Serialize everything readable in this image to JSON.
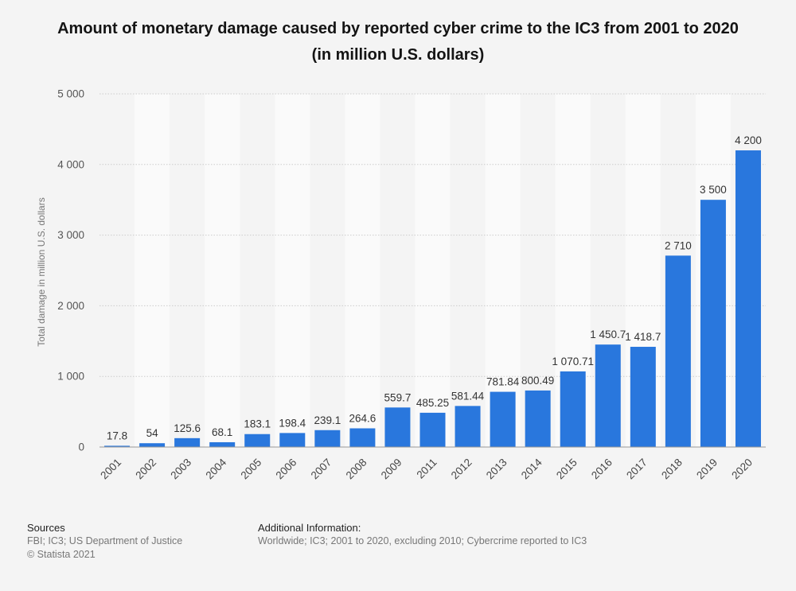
{
  "title": "Amount of monetary damage caused by reported cyber crime to the IC3 from 2001 to 2020 (in million U.S. dollars)",
  "colors": {
    "bar": "#2977dd",
    "background": "#f4f4f4",
    "band": "#fafafa",
    "grid": "#cccccc"
  },
  "chart_data": {
    "type": "bar",
    "title": "Amount of monetary damage caused by reported cyber crime to the IC3 from 2001 to 2020 (in million U.S. dollars)",
    "xlabel": "",
    "ylabel": "Total damage in million U.S. dollars",
    "ylim": [
      0,
      5000
    ],
    "yticks": [
      0,
      1000,
      2000,
      3000,
      4000,
      5000
    ],
    "ytick_labels": [
      "0",
      "1 000",
      "2 000",
      "3 000",
      "4 000",
      "5 000"
    ],
    "grid": true,
    "categories": [
      "2001",
      "2002",
      "2003",
      "2004",
      "2005",
      "2006",
      "2007",
      "2008",
      "2009",
      "2011",
      "2012",
      "2013",
      "2014",
      "2015",
      "2016",
      "2017",
      "2018",
      "2019",
      "2020"
    ],
    "values": [
      17.8,
      54,
      125.6,
      68.1,
      183.1,
      198.4,
      239.1,
      264.6,
      559.7,
      485.25,
      581.44,
      781.84,
      800.49,
      1070.71,
      1450.7,
      1418.7,
      2710,
      3500,
      4200
    ],
    "data_labels": [
      "17.8",
      "54",
      "125.6",
      "68.1",
      "183.1",
      "198.4",
      "239.1",
      "264.6",
      "559.7",
      "485.25",
      "581.44",
      "781.84",
      "800.49",
      "1 070.71",
      "1 450.7",
      "1 418.7",
      "2 710",
      "3 500",
      "4 200"
    ]
  },
  "footer": {
    "sources_title": "Sources",
    "sources_line1": "FBI; IC3; US Department of Justice",
    "sources_line2": "© Statista 2021",
    "additional_title": "Additional Information:",
    "additional_text": "Worldwide; IC3; 2001 to 2020, excluding 2010; Cybercrime reported to IC3"
  }
}
